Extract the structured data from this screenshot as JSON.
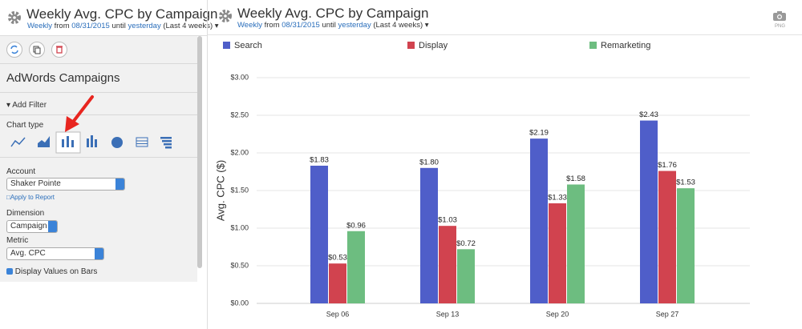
{
  "sidebar": {
    "title": "Weekly Avg. CPC by Campaign",
    "subtitle": {
      "period": "Weekly",
      "from": "from",
      "start": "08/31/2015",
      "until": "until",
      "end": "yesterday",
      "range": "(Last 4 weeks)"
    },
    "section_title": "AdWords Campaigns",
    "add_filter": "Add Filter",
    "chart_type_label": "Chart type",
    "account_label": "Account",
    "account_value": "Shaker Pointe",
    "apply": "Apply to Report",
    "dimension_label": "Dimension",
    "dimension_value": "Campaign",
    "metric_label": "Metric",
    "metric_value": "Avg. CPC",
    "display_values": "Display Values on Bars"
  },
  "header": {
    "title": "Weekly Avg. CPC by Campaign",
    "subtitle": {
      "period": "Weekly",
      "from": "from",
      "start": "08/31/2015",
      "until": "until",
      "end": "yesterday",
      "range": "(Last 4 weeks)"
    },
    "export": "PNG"
  },
  "chart_data": {
    "type": "bar",
    "y_label": "Avg. CPC ($)",
    "categories": [
      "Sep 06",
      "Sep 13",
      "Sep 20",
      "Sep 27"
    ],
    "series": [
      {
        "name": "Search",
        "color": "#4f5ec9",
        "values": [
          1.83,
          1.8,
          2.19,
          2.43
        ],
        "value_labels": [
          "$1.83",
          "$1.80",
          "$2.19",
          "$2.43"
        ]
      },
      {
        "name": "Display",
        "color": "#d1434f",
        "values": [
          0.53,
          1.03,
          1.33,
          1.76
        ],
        "value_labels": [
          "$0.53",
          "$1.03",
          "$1.33",
          "$1.76"
        ]
      },
      {
        "name": "Remarketing",
        "color": "#6dbd80",
        "values": [
          0.96,
          0.72,
          1.58,
          1.53
        ],
        "value_labels": [
          "$0.96",
          "$0.72",
          "$1.58",
          "$1.53"
        ]
      }
    ],
    "ylim": [
      0,
      3
    ],
    "yticks": [
      {
        "value": 0,
        "label": "$0.00"
      },
      {
        "value": 0.5,
        "label": "$0.50"
      },
      {
        "value": 1,
        "label": "$1.00"
      },
      {
        "value": 1.5,
        "label": "$1.50"
      },
      {
        "value": 2,
        "label": "$2.00"
      },
      {
        "value": 2.5,
        "label": "$2.50"
      },
      {
        "value": 3,
        "label": "$3.00"
      }
    ],
    "grid": true,
    "legend": "top"
  }
}
